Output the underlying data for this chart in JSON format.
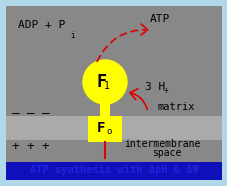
{
  "fig_width": 2.28,
  "fig_height": 1.86,
  "dpi": 100,
  "bg_outer": "#b0d8e8",
  "bg_matrix": "#888888",
  "bg_membrane": "#aaaaaa",
  "bg_bottom": "#1010bb",
  "yellow": "#ffff00",
  "red": "#dd0000",
  "title_text": "ATP synthesis with ΔpH & ΔΨ",
  "title_color": "#2222dd",
  "matrix_label": "matrix",
  "adp_label": "ADP + P",
  "pi_sub": "i",
  "atp_label": "ATP",
  "f1_label": "F",
  "f1_sub": "1",
  "f0_label": "F",
  "f0_sub": "o",
  "h_label": "3 H",
  "h_sup": "+",
  "minus_signs": "_ _ _",
  "plus_signs": "+ + +",
  "intermembrane1": "intermembrane",
  "intermembrane2": "space"
}
